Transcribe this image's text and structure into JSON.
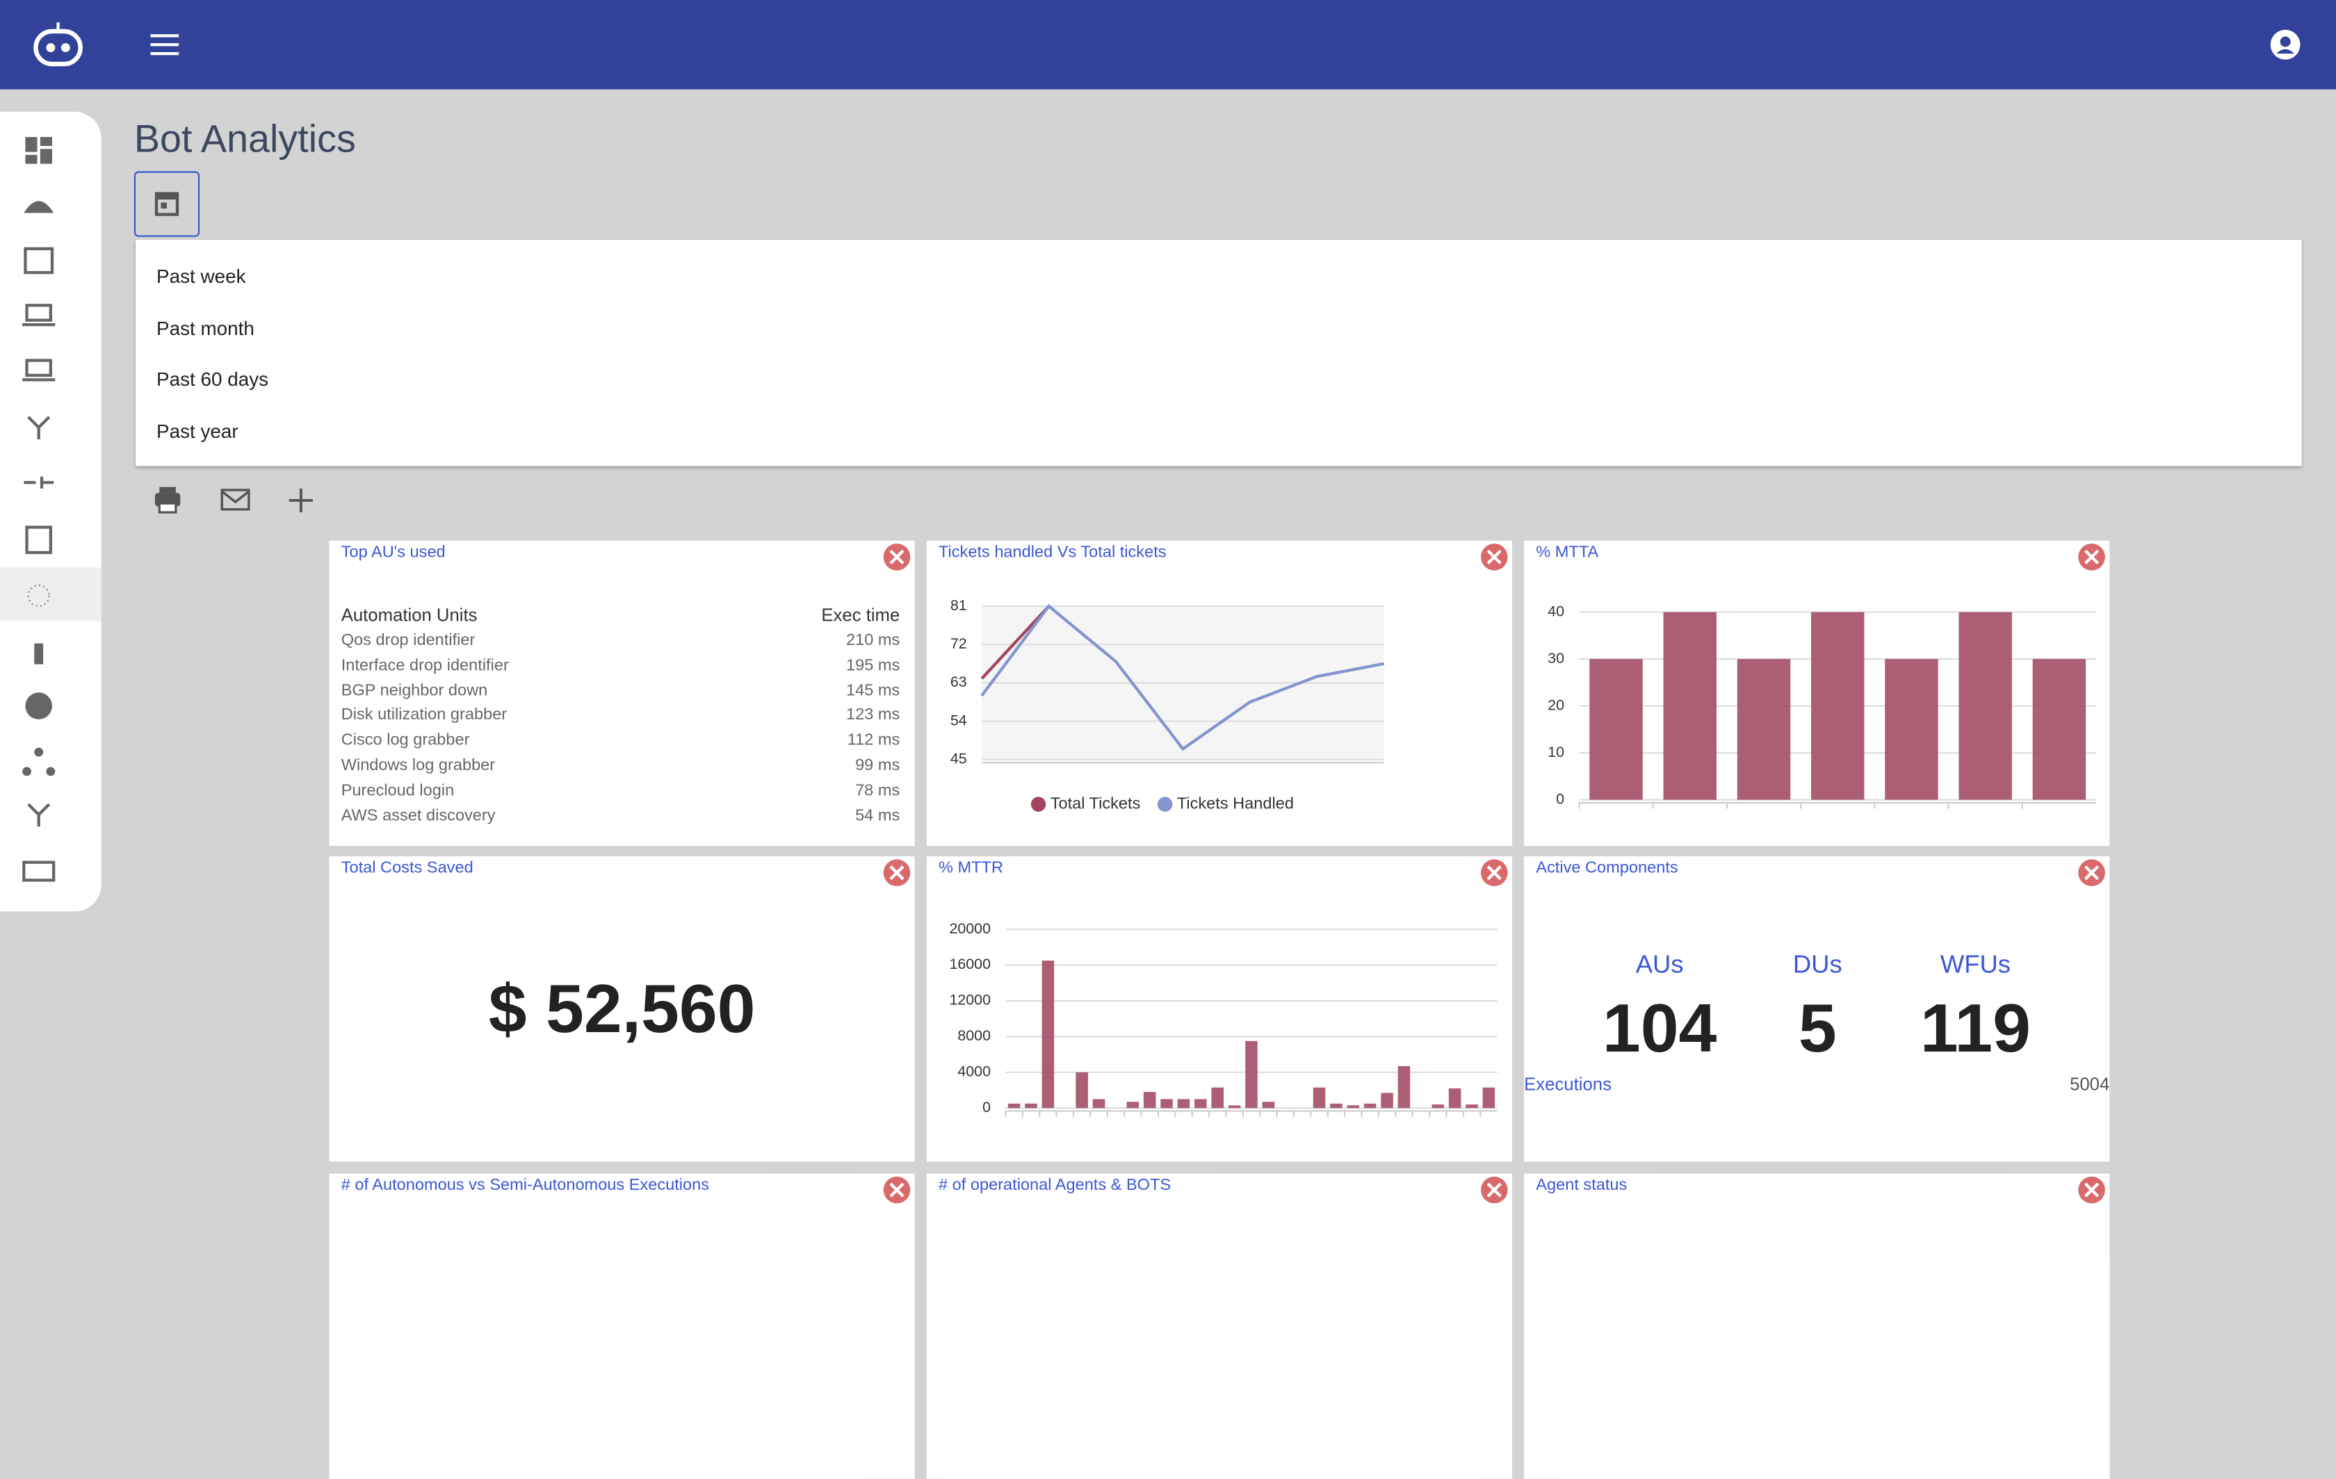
{
  "header": {
    "title": "Bot Analytics"
  },
  "date_options": [
    "Past week",
    "Past month",
    "Past 60 days",
    "Past year"
  ],
  "widgets": {
    "top_aus": {
      "title": "Top AU's used",
      "columns": [
        "Automation Units",
        "Exec time"
      ],
      "rows": [
        [
          "Qos drop identifier",
          "210 ms"
        ],
        [
          "Interface drop identifier",
          "195 ms"
        ],
        [
          "BGP neighbor down",
          "145 ms"
        ],
        [
          "Disk utilization grabber",
          "123 ms"
        ],
        [
          "Cisco log grabber",
          "112 ms"
        ],
        [
          "Windows log grabber",
          "99 ms"
        ],
        [
          "Purecloud login",
          "78 ms"
        ],
        [
          "AWS asset discovery",
          "54 ms"
        ]
      ]
    },
    "tickets": {
      "title": "Tickets handled Vs Total tickets",
      "chart_data": {
        "type": "line",
        "categories": [
          null,
          null,
          null,
          null,
          null,
          null,
          null
        ],
        "ylim": [
          45,
          81
        ],
        "yticks": [
          45,
          54,
          63,
          72,
          81
        ],
        "grid": true,
        "legend": "bottom",
        "series": [
          {
            "name": "Total Tickets",
            "color": "#a3445f",
            "values": [
              64,
              81,
              null,
              null,
              null,
              null,
              null
            ]
          },
          {
            "name": "Tickets Handled",
            "color": "#8594cf",
            "values": [
              60,
              81,
              68,
              47.5,
              58.5,
              64.5,
              67.5
            ]
          }
        ]
      }
    },
    "mtta": {
      "title": "% MTTA",
      "chart_data": {
        "type": "bar",
        "categories": [
          null,
          null,
          null,
          null,
          null,
          null,
          null
        ],
        "ylim": [
          0,
          40
        ],
        "yticks": [
          0,
          10,
          20,
          30,
          40
        ],
        "grid": true,
        "color": "#a34c66",
        "values": [
          30,
          40,
          30,
          40,
          30,
          40,
          30
        ]
      }
    },
    "costs": {
      "title": "Total Costs Saved",
      "value": "$ 52,560"
    },
    "mttr": {
      "title": "% MTTR",
      "chart_data": {
        "type": "bar",
        "categories": [
          null,
          null,
          null,
          null,
          null,
          null,
          null,
          null,
          null,
          null,
          null,
          null,
          null,
          null,
          null,
          null,
          null,
          null,
          null,
          null,
          null,
          null,
          null,
          null,
          null,
          null,
          null,
          null,
          null
        ],
        "ylim": [
          0,
          20000
        ],
        "yticks": [
          0,
          4000,
          8000,
          12000,
          16000,
          20000
        ],
        "grid": true,
        "color": "#a34c66",
        "values": [
          500,
          500,
          16500,
          0,
          4000,
          1000,
          0,
          700,
          1800,
          1000,
          1000,
          1000,
          2300,
          300,
          7500,
          700,
          0,
          0,
          2300,
          500,
          300,
          500,
          1700,
          4700,
          0,
          400,
          2200,
          400,
          2300
        ]
      }
    },
    "components": {
      "title": "Active Components",
      "items": [
        {
          "label": "AUs",
          "value": 104
        },
        {
          "label": "DUs",
          "value": 5
        },
        {
          "label": "WFUs",
          "value": 119
        }
      ],
      "executions_label": "Executions",
      "executions": 5004
    },
    "autonomous": {
      "title": "# of Autonomous vs Semi-Autonomous Executions"
    },
    "agents": {
      "title": "# of operational Agents & BOTS"
    },
    "agent_status": {
      "title": "Agent status"
    }
  }
}
